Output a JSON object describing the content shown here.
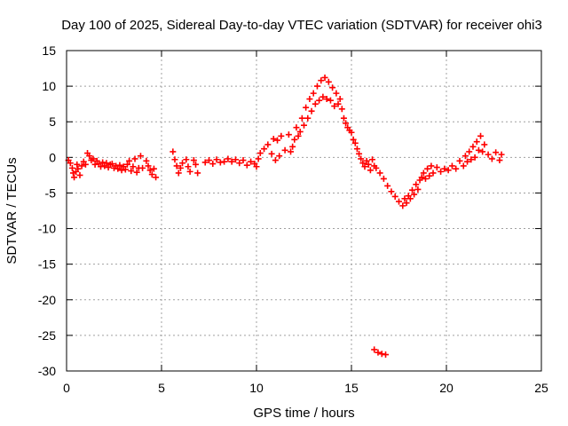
{
  "chart_data": {
    "type": "scatter",
    "title": "Day 100 of 2025, Sidereal Day-to-day VTEC variation (SDTVAR) for receiver ohi3",
    "xlabel": "GPS time / hours",
    "ylabel": "SDTVAR / TECUs",
    "xlim": [
      0,
      25
    ],
    "ylim": [
      -30,
      15
    ],
    "xticks": [
      0,
      5,
      10,
      15,
      20,
      25
    ],
    "yticks": [
      -30,
      -25,
      -20,
      -15,
      -10,
      -5,
      0,
      5,
      10,
      15
    ],
    "grid": true,
    "marker": "+",
    "color": "#ff0000",
    "series": [
      {
        "name": "SDTVAR",
        "points": [
          [
            0.1,
            -0.4
          ],
          [
            0.2,
            -0.8
          ],
          [
            0.3,
            -1.5
          ],
          [
            0.35,
            -2.2
          ],
          [
            0.4,
            -2.8
          ],
          [
            0.5,
            -2.0
          ],
          [
            0.55,
            -1.0
          ],
          [
            0.6,
            -1.6
          ],
          [
            0.7,
            -2.5
          ],
          [
            0.8,
            -1.2
          ],
          [
            0.9,
            -0.6
          ],
          [
            1.0,
            -1.0
          ],
          [
            1.1,
            0.6
          ],
          [
            1.2,
            0.2
          ],
          [
            1.3,
            -0.4
          ],
          [
            1.4,
            -0.2
          ],
          [
            1.5,
            -1.0
          ],
          [
            1.6,
            -0.5
          ],
          [
            1.7,
            -0.9
          ],
          [
            1.8,
            -1.3
          ],
          [
            1.9,
            -0.7
          ],
          [
            2.0,
            -1.2
          ],
          [
            2.1,
            -0.8
          ],
          [
            2.2,
            -1.4
          ],
          [
            2.3,
            -1.0
          ],
          [
            2.4,
            -0.9
          ],
          [
            2.5,
            -1.5
          ],
          [
            2.6,
            -1.2
          ],
          [
            2.7,
            -1.6
          ],
          [
            2.8,
            -1.1
          ],
          [
            2.9,
            -1.8
          ],
          [
            3.0,
            -1.3
          ],
          [
            3.1,
            -1.7
          ],
          [
            3.2,
            -1.0
          ],
          [
            3.3,
            -0.5
          ],
          [
            3.4,
            -1.9
          ],
          [
            3.5,
            -1.3
          ],
          [
            3.6,
            -0.2
          ],
          [
            3.7,
            -2.1
          ],
          [
            3.8,
            -1.5
          ],
          [
            3.9,
            0.2
          ],
          [
            4.0,
            -1.5
          ],
          [
            4.2,
            -0.5
          ],
          [
            4.3,
            -1.2
          ],
          [
            4.4,
            -1.8
          ],
          [
            4.5,
            -2.4
          ],
          [
            4.6,
            -1.6
          ],
          [
            4.7,
            -2.8
          ],
          [
            5.6,
            0.8
          ],
          [
            5.7,
            -0.3
          ],
          [
            5.8,
            -1.2
          ],
          [
            5.9,
            -2.2
          ],
          [
            6.0,
            -1.5
          ],
          [
            6.1,
            -0.8
          ],
          [
            6.3,
            -0.3
          ],
          [
            6.4,
            -1.3
          ],
          [
            6.5,
            -2.0
          ],
          [
            6.7,
            -0.4
          ],
          [
            6.8,
            -1.0
          ],
          [
            6.9,
            -2.2
          ],
          [
            7.3,
            -0.7
          ],
          [
            7.5,
            -0.4
          ],
          [
            7.7,
            -0.9
          ],
          [
            7.9,
            -0.3
          ],
          [
            8.1,
            -0.7
          ],
          [
            8.3,
            -0.6
          ],
          [
            8.5,
            -0.2
          ],
          [
            8.7,
            -0.6
          ],
          [
            8.9,
            -0.3
          ],
          [
            9.1,
            -0.8
          ],
          [
            9.3,
            -0.4
          ],
          [
            9.5,
            -1.1
          ],
          [
            9.7,
            -0.6
          ],
          [
            9.9,
            -0.9
          ],
          [
            10.0,
            -1.3
          ],
          [
            10.1,
            -0.2
          ],
          [
            10.2,
            0.6
          ],
          [
            10.4,
            1.2
          ],
          [
            10.6,
            1.8
          ],
          [
            10.8,
            0.5
          ],
          [
            10.9,
            2.6
          ],
          [
            11.0,
            -0.4
          ],
          [
            11.1,
            2.4
          ],
          [
            11.2,
            0.2
          ],
          [
            11.3,
            3.0
          ],
          [
            11.5,
            1.0
          ],
          [
            11.7,
            3.2
          ],
          [
            11.8,
            0.8
          ],
          [
            11.9,
            1.5
          ],
          [
            12.0,
            2.5
          ],
          [
            12.1,
            4.2
          ],
          [
            12.2,
            3.0
          ],
          [
            12.3,
            3.6
          ],
          [
            12.4,
            5.5
          ],
          [
            12.5,
            4.5
          ],
          [
            12.6,
            7.0
          ],
          [
            12.7,
            5.5
          ],
          [
            12.8,
            8.2
          ],
          [
            12.9,
            6.5
          ],
          [
            13.0,
            9.0
          ],
          [
            13.1,
            7.5
          ],
          [
            13.2,
            10.0
          ],
          [
            13.3,
            8.0
          ],
          [
            13.4,
            10.8
          ],
          [
            13.5,
            8.5
          ],
          [
            13.6,
            11.2
          ],
          [
            13.7,
            8.2
          ],
          [
            13.8,
            10.6
          ],
          [
            13.9,
            8.0
          ],
          [
            14.0,
            9.8
          ],
          [
            14.1,
            7.2
          ],
          [
            14.2,
            9.0
          ],
          [
            14.3,
            7.5
          ],
          [
            14.4,
            8.2
          ],
          [
            14.5,
            6.8
          ],
          [
            14.6,
            5.5
          ],
          [
            14.7,
            4.8
          ],
          [
            14.8,
            4.2
          ],
          [
            14.9,
            3.8
          ],
          [
            15.0,
            3.5
          ],
          [
            15.1,
            2.5
          ],
          [
            15.2,
            2.0
          ],
          [
            15.3,
            1.2
          ],
          [
            15.4,
            0.5
          ],
          [
            15.5,
            -0.2
          ],
          [
            15.6,
            -0.8
          ],
          [
            15.7,
            -1.3
          ],
          [
            15.8,
            -0.5
          ],
          [
            15.9,
            -1.0
          ],
          [
            16.0,
            -1.8
          ],
          [
            16.1,
            -0.3
          ],
          [
            16.2,
            -1.2
          ],
          [
            16.3,
            -1.5
          ],
          [
            16.5,
            -2.2
          ],
          [
            16.7,
            -3.0
          ],
          [
            16.9,
            -4.0
          ],
          [
            17.1,
            -4.8
          ],
          [
            17.3,
            -5.5
          ],
          [
            17.5,
            -6.2
          ],
          [
            17.7,
            -6.8
          ],
          [
            17.8,
            -5.8
          ],
          [
            17.9,
            -6.4
          ],
          [
            18.0,
            -5.4
          ],
          [
            18.1,
            -5.8
          ],
          [
            18.2,
            -4.6
          ],
          [
            18.3,
            -5.2
          ],
          [
            18.4,
            -3.8
          ],
          [
            18.5,
            -4.5
          ],
          [
            18.6,
            -3.2
          ],
          [
            18.7,
            -2.8
          ],
          [
            18.8,
            -2.2
          ],
          [
            18.9,
            -3.0
          ],
          [
            19.0,
            -1.6
          ],
          [
            19.1,
            -2.6
          ],
          [
            19.2,
            -1.2
          ],
          [
            19.3,
            -2.2
          ],
          [
            19.5,
            -1.4
          ],
          [
            19.7,
            -2.0
          ],
          [
            19.9,
            -1.6
          ],
          [
            20.1,
            -1.8
          ],
          [
            20.3,
            -1.2
          ],
          [
            20.5,
            -1.6
          ],
          [
            20.7,
            -0.5
          ],
          [
            20.9,
            -1.2
          ],
          [
            21.0,
            0.2
          ],
          [
            21.1,
            -0.6
          ],
          [
            21.2,
            0.8
          ],
          [
            21.3,
            -0.3
          ],
          [
            21.4,
            1.5
          ],
          [
            21.5,
            0.0
          ],
          [
            21.6,
            2.2
          ],
          [
            21.7,
            1.0
          ],
          [
            21.8,
            3.0
          ],
          [
            21.9,
            0.8
          ],
          [
            22.0,
            1.8
          ],
          [
            22.2,
            0.4
          ],
          [
            22.4,
            -0.2
          ],
          [
            22.6,
            0.7
          ],
          [
            22.8,
            -0.4
          ],
          [
            22.9,
            0.4
          ],
          [
            16.2,
            -27.0
          ],
          [
            16.4,
            -27.4
          ],
          [
            16.6,
            -27.6
          ],
          [
            16.8,
            -27.7
          ]
        ]
      }
    ]
  }
}
